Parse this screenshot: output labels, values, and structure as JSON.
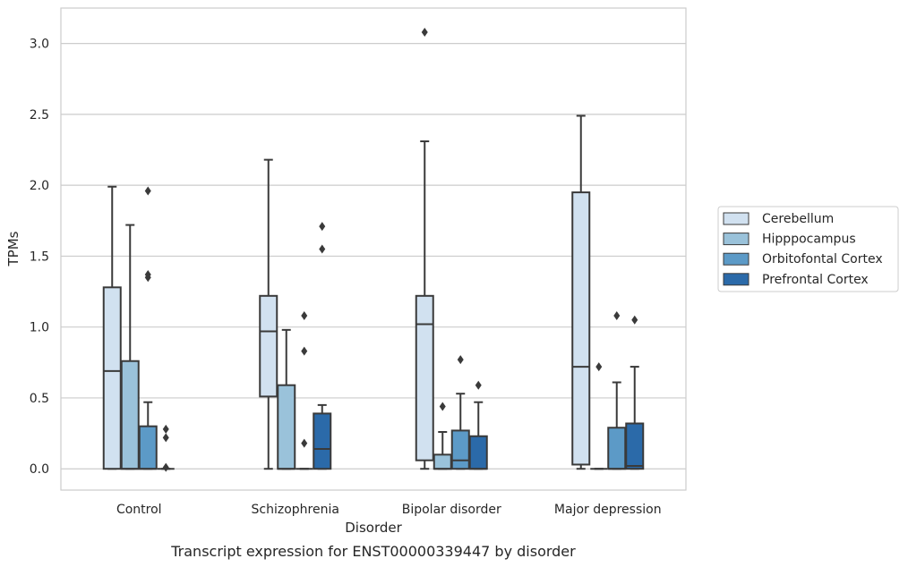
{
  "caption": "Transcript expression for ENST00000339447 by disorder",
  "chart_data": {
    "type": "box",
    "xlabel": "Disorder",
    "ylabel": "TPMs",
    "ylim": [
      -0.15,
      3.25
    ],
    "yticks": [
      "0.0",
      "0.5",
      "1.0",
      "1.5",
      "2.0",
      "2.5",
      "3.0"
    ],
    "grid": "horizontal",
    "legend_position": "right",
    "categories": [
      "Control",
      "Schizophrenia",
      "Bipolar disorder",
      "Major depression"
    ],
    "series": [
      {
        "name": "Cerebellum",
        "color": "#d1e1f0",
        "boxes": [
          {
            "whislo": 0.0,
            "q1": 0.0,
            "med": 0.69,
            "q3": 1.28,
            "whishi": 1.99,
            "fliers": []
          },
          {
            "whislo": 0.0,
            "q1": 0.51,
            "med": 0.97,
            "q3": 1.22,
            "whishi": 2.18,
            "fliers": []
          },
          {
            "whislo": 0.0,
            "q1": 0.06,
            "med": 1.02,
            "q3": 1.22,
            "whishi": 2.31,
            "fliers": [
              3.08
            ]
          },
          {
            "whislo": 0.0,
            "q1": 0.03,
            "med": 0.72,
            "q3": 1.95,
            "whishi": 2.49,
            "fliers": []
          }
        ]
      },
      {
        "name": "Hipppocampus",
        "color": "#9ac2da",
        "boxes": [
          {
            "whislo": 0.0,
            "q1": 0.0,
            "med": 0.0,
            "q3": 0.76,
            "whishi": 1.72,
            "fliers": []
          },
          {
            "whislo": 0.0,
            "q1": 0.0,
            "med": 0.0,
            "q3": 0.59,
            "whishi": 0.98,
            "fliers": []
          },
          {
            "whislo": 0.0,
            "q1": 0.0,
            "med": 0.0,
            "q3": 0.1,
            "whishi": 0.26,
            "fliers": [
              0.44
            ]
          },
          {
            "whislo": 0.0,
            "q1": 0.0,
            "med": 0.0,
            "q3": 0.0,
            "whishi": 0.0,
            "fliers": [
              0.72
            ]
          }
        ]
      },
      {
        "name": "Orbitofontal Cortex",
        "color": "#5c9ac7",
        "boxes": [
          {
            "whislo": 0.0,
            "q1": 0.0,
            "med": 0.0,
            "q3": 0.3,
            "whishi": 0.47,
            "fliers": [
              1.96,
              1.37,
              1.35
            ]
          },
          {
            "whislo": 0.0,
            "q1": 0.0,
            "med": 0.0,
            "q3": 0.0,
            "whishi": 0.0,
            "fliers": [
              1.08,
              0.83,
              0.18
            ]
          },
          {
            "whislo": 0.0,
            "q1": 0.0,
            "med": 0.06,
            "q3": 0.27,
            "whishi": 0.53,
            "fliers": [
              0.77
            ]
          },
          {
            "whislo": 0.0,
            "q1": 0.0,
            "med": 0.0,
            "q3": 0.29,
            "whishi": 0.61,
            "fliers": [
              1.08
            ]
          }
        ]
      },
      {
        "name": "Prefrontal Cortex",
        "color": "#2b6aa9",
        "boxes": [
          {
            "whislo": 0.0,
            "q1": 0.0,
            "med": 0.0,
            "q3": 0.0,
            "whishi": 0.0,
            "fliers": [
              0.28,
              0.22,
              0.01
            ]
          },
          {
            "whislo": 0.0,
            "q1": 0.0,
            "med": 0.14,
            "q3": 0.39,
            "whishi": 0.45,
            "fliers": [
              1.71,
              1.55
            ]
          },
          {
            "whislo": 0.0,
            "q1": 0.0,
            "med": 0.0,
            "q3": 0.23,
            "whishi": 0.47,
            "fliers": [
              0.59
            ]
          },
          {
            "whislo": 0.0,
            "q1": 0.0,
            "med": 0.02,
            "q3": 0.32,
            "whishi": 0.72,
            "fliers": [
              1.05
            ]
          }
        ]
      }
    ]
  }
}
